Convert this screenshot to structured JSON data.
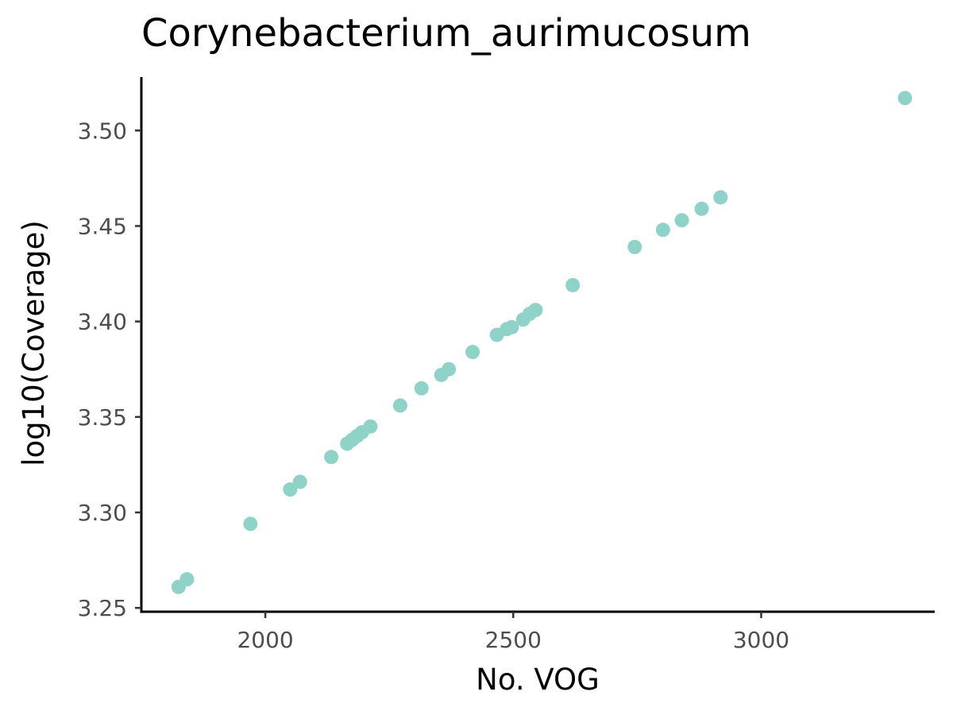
{
  "chart_data": {
    "type": "scatter",
    "title": "Corynebacterium_aurimucosum",
    "xlabel": "No. VOG",
    "ylabel": "log10(Coverage)",
    "xlim": [
      1750,
      3350
    ],
    "ylim": [
      3.248,
      3.528
    ],
    "x_ticks": [
      2000,
      2500,
      3000
    ],
    "x_tick_labels": [
      "2000",
      "2500",
      "3000"
    ],
    "y_ticks": [
      3.25,
      3.3,
      3.35,
      3.4,
      3.45,
      3.5
    ],
    "y_tick_labels": [
      "3.25",
      "3.30",
      "3.35",
      "3.40",
      "3.45",
      "3.50"
    ],
    "grid": false,
    "point_color": "#8fd3c8",
    "points": [
      {
        "x": 1825,
        "y": 3.261
      },
      {
        "x": 1842,
        "y": 3.265
      },
      {
        "x": 1970,
        "y": 3.294
      },
      {
        "x": 2050,
        "y": 3.312
      },
      {
        "x": 2070,
        "y": 3.316
      },
      {
        "x": 2133,
        "y": 3.329
      },
      {
        "x": 2165,
        "y": 3.336
      },
      {
        "x": 2175,
        "y": 3.338
      },
      {
        "x": 2185,
        "y": 3.34
      },
      {
        "x": 2195,
        "y": 3.342
      },
      {
        "x": 2212,
        "y": 3.345
      },
      {
        "x": 2272,
        "y": 3.356
      },
      {
        "x": 2315,
        "y": 3.365
      },
      {
        "x": 2355,
        "y": 3.372
      },
      {
        "x": 2370,
        "y": 3.375
      },
      {
        "x": 2418,
        "y": 3.384
      },
      {
        "x": 2467,
        "y": 3.393
      },
      {
        "x": 2487,
        "y": 3.396
      },
      {
        "x": 2497,
        "y": 3.397
      },
      {
        "x": 2520,
        "y": 3.401
      },
      {
        "x": 2533,
        "y": 3.404
      },
      {
        "x": 2545,
        "y": 3.406
      },
      {
        "x": 2620,
        "y": 3.419
      },
      {
        "x": 2745,
        "y": 3.439
      },
      {
        "x": 2802,
        "y": 3.448
      },
      {
        "x": 2840,
        "y": 3.453
      },
      {
        "x": 2880,
        "y": 3.459
      },
      {
        "x": 2918,
        "y": 3.465
      },
      {
        "x": 3290,
        "y": 3.517
      }
    ]
  }
}
